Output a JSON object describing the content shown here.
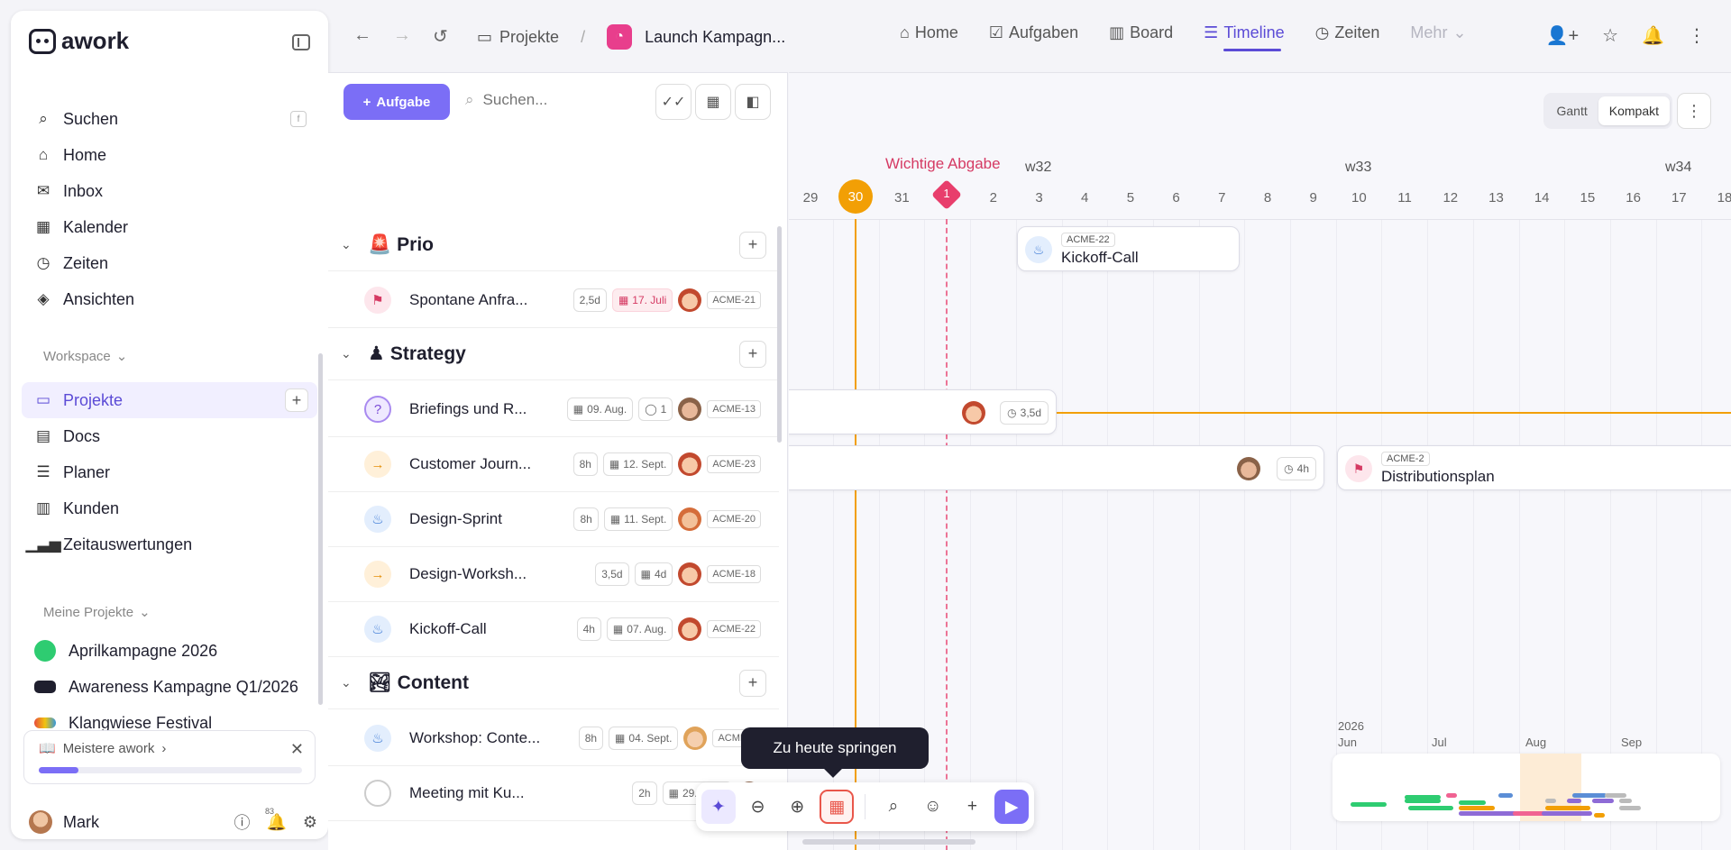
{
  "sidebar": {
    "brand": "awork",
    "nav": [
      {
        "label": "Suchen",
        "icon": "search-icon",
        "shortcut": "f"
      },
      {
        "label": "Home",
        "icon": "home-icon"
      },
      {
        "label": "Inbox",
        "icon": "inbox-icon"
      },
      {
        "label": "Kalender",
        "icon": "calendar-icon"
      },
      {
        "label": "Zeiten",
        "icon": "timer-icon"
      },
      {
        "label": "Ansichten",
        "icon": "layers-icon"
      }
    ],
    "workspace_title": "Workspace",
    "workspace_items": [
      {
        "label": "Projekte",
        "icon": "folder-icon",
        "active": true
      },
      {
        "label": "Docs",
        "icon": "doc-icon"
      },
      {
        "label": "Planer",
        "icon": "planner-icon"
      },
      {
        "label": "Kunden",
        "icon": "building-icon"
      },
      {
        "label": "Zeitauswertungen",
        "icon": "chart-icon"
      }
    ],
    "my_projects_title": "Meine Projekte",
    "projects": [
      {
        "label": "Aprilkampagne 2026",
        "color": "#2ecc71"
      },
      {
        "label": "Awareness Kampagne Q1/2026",
        "color": "#1f1f2e"
      },
      {
        "label": "Klangwiese Festival",
        "color": "#e74c3c"
      }
    ],
    "learn": {
      "title": "Meistere awork",
      "progress": 0.15
    },
    "user": {
      "name": "Mark",
      "notifications": "83"
    }
  },
  "topbar": {
    "breadcrumb_root": "Projekte",
    "breadcrumb_sep": "/",
    "project_title": "Launch Kampagn...",
    "tabs": [
      {
        "label": "Home",
        "icon": "home-icon"
      },
      {
        "label": "Aufgaben",
        "icon": "checkbox-icon"
      },
      {
        "label": "Board",
        "icon": "board-icon"
      },
      {
        "label": "Timeline",
        "icon": "timeline-icon",
        "active": true
      },
      {
        "label": "Zeiten",
        "icon": "timer-icon"
      },
      {
        "label": "Mehr",
        "icon": "chevron-down-icon"
      }
    ]
  },
  "tasklist": {
    "add_label": "Aufgabe",
    "search_placeholder": "Suchen...",
    "groups": [
      {
        "name": "Prio",
        "emoji": "🚨",
        "tasks": [
          {
            "name": "Spontane Anfra...",
            "chips": [
              "2,5d"
            ],
            "date": "17. Juli",
            "date_red": true,
            "id": "ACME-21",
            "icon": "flag-icon"
          }
        ]
      },
      {
        "name": "Strategy",
        "emoji": "♟",
        "tasks": [
          {
            "name": "Briefings und R...",
            "date": "09. Aug.",
            "comments": "1",
            "id": "ACME-13",
            "icon": "question-icon"
          },
          {
            "name": "Customer Journ...",
            "chips": [
              "8h"
            ],
            "date": "12. Sept.",
            "id": "ACME-23",
            "icon": "arrow-right-icon"
          },
          {
            "name": "Design-Sprint",
            "chips": [
              "8h"
            ],
            "date": "11. Sept.",
            "id": "ACME-20",
            "icon": "flame-icon"
          },
          {
            "name": "Design-Worksh...",
            "chips": [
              "3,5d"
            ],
            "date": "4d",
            "id": "ACME-18",
            "icon": "arrow-right-icon"
          },
          {
            "name": "Kickoff-Call",
            "chips": [
              "4h"
            ],
            "date": "07. Aug.",
            "id": "ACME-22",
            "icon": "flame-icon"
          }
        ]
      },
      {
        "name": "Content",
        "emoji": "🏞",
        "tasks": [
          {
            "name": "Workshop: Conte...",
            "chips": [
              "8h"
            ],
            "date": "04. Sept.",
            "id": "ACME-1",
            "icon": "flame-icon"
          },
          {
            "name": "Meeting mit Ku...",
            "chips": [
              "2h"
            ],
            "date": "29. Sept.",
            "id": "",
            "icon": "circle-icon"
          }
        ]
      }
    ]
  },
  "timeline": {
    "view_gantt": "Gantt",
    "view_compact": "Kompakt",
    "milestone_label": "Wichtige Abgabe",
    "weeks": [
      "w32",
      "w33",
      "w34"
    ],
    "days": [
      "29",
      "30",
      "31",
      "1",
      "2",
      "3",
      "4",
      "5",
      "6",
      "7",
      "8",
      "9",
      "10",
      "11",
      "12",
      "13",
      "14",
      "15",
      "16",
      "17",
      "18"
    ],
    "today": "30",
    "milestone_day": "1",
    "bars": {
      "kickoff": {
        "id": "ACME-22",
        "title": "Kickoff-Call"
      },
      "briefings": {
        "duration": "3,5d"
      },
      "customer": {
        "duration": "4h"
      },
      "distribution": {
        "id": "ACME-2",
        "title": "Distributionsplan"
      }
    }
  },
  "tooltip": "Zu heute springen",
  "minimap": {
    "year": "2026",
    "months": [
      "Jun",
      "Jul",
      "Aug",
      "Sep"
    ]
  }
}
